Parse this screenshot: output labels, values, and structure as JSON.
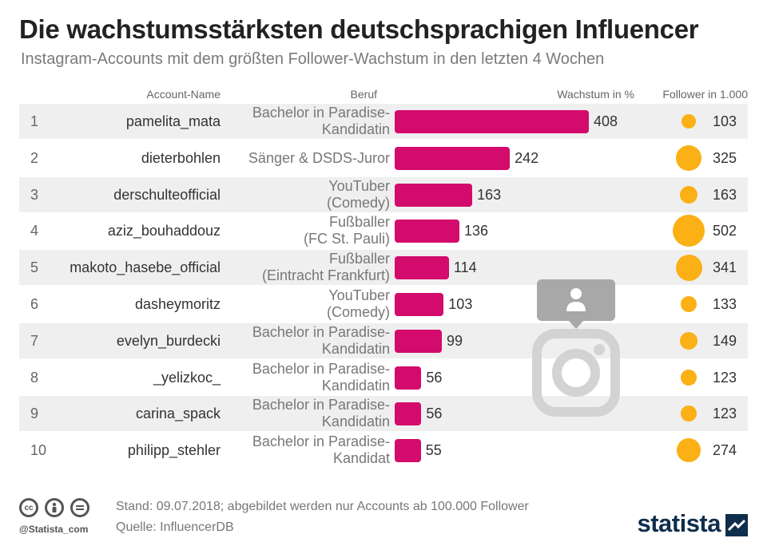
{
  "title": "Die wachstumsstärksten deutschsprachigen Influencer",
  "subtitle": "Instagram-Accounts mit dem größten Follower-Wachstum in den letzten 4 Wochen",
  "headers": {
    "account": "Account-Name",
    "beruf": "Beruf",
    "growth": "Wachstum in %",
    "followers": "Follower in 1.000"
  },
  "colors": {
    "bar": "#d30b6c",
    "bubble": "#fbb015",
    "row_shade": "#efefef",
    "brand": "#0f2e4c"
  },
  "chart_data": {
    "type": "bar",
    "orientation": "horizontal",
    "categories": [
      "pamelita_mata",
      "dieterbohlen",
      "derschulteofficial",
      "aziz_bouhaddouz",
      "makoto_hasebe_official",
      "dasheymoritz",
      "evelyn_burdecki",
      "_yelizkoc_",
      "carina_spack",
      "philipp_stehler"
    ],
    "series": [
      {
        "name": "Wachstum in %",
        "values": [
          408,
          242,
          163,
          136,
          114,
          103,
          99,
          56,
          56,
          55
        ]
      },
      {
        "name": "Follower in 1.000",
        "values": [
          103,
          325,
          163,
          502,
          341,
          133,
          149,
          123,
          123,
          274
        ]
      }
    ]
  },
  "rows": [
    {
      "rank": "1",
      "account": "pamelita_mata",
      "beruf": [
        "Bachelor in Paradise-",
        "Kandidatin"
      ],
      "growth": "408",
      "followers": "103"
    },
    {
      "rank": "2",
      "account": "dieterbohlen",
      "beruf": [
        "Sänger & DSDS-Juror"
      ],
      "growth": "242",
      "followers": "325"
    },
    {
      "rank": "3",
      "account": "derschulteofficial",
      "beruf": [
        "YouTuber",
        "(Comedy)"
      ],
      "growth": "163",
      "followers": "163"
    },
    {
      "rank": "4",
      "account": "aziz_bouhaddouz",
      "beruf": [
        "Fußballer",
        "(FC St. Pauli)"
      ],
      "growth": "136",
      "followers": "502"
    },
    {
      "rank": "5",
      "account": "makoto_hasebe_official",
      "beruf": [
        "Fußballer",
        "(Eintracht Frankfurt)"
      ],
      "growth": "114",
      "followers": "341"
    },
    {
      "rank": "6",
      "account": "dasheymoritz",
      "beruf": [
        "YouTuber",
        "(Comedy)"
      ],
      "growth": "103",
      "followers": "133"
    },
    {
      "rank": "7",
      "account": "evelyn_burdecki",
      "beruf": [
        "Bachelor in Paradise-",
        "Kandidatin"
      ],
      "growth": "99",
      "followers": "149"
    },
    {
      "rank": "8",
      "account": "_yelizkoc_",
      "beruf": [
        "Bachelor in Paradise-",
        "Kandidatin"
      ],
      "growth": "56",
      "followers": "123"
    },
    {
      "rank": "9",
      "account": "carina_spack",
      "beruf": [
        "Bachelor in Paradise-",
        "Kandidatin"
      ],
      "growth": "56",
      "followers": "123"
    },
    {
      "rank": "10",
      "account": "philipp_stehler",
      "beruf": [
        "Bachelor in Paradise-",
        "Kandidat"
      ],
      "growth": "55",
      "followers": "274"
    }
  ],
  "footer": {
    "stand": "Stand: 09.07.2018; abgebildet werden nur Accounts ab 100.000 Follower",
    "source": "Quelle: InfluencerDB",
    "handle": "@Statista_com",
    "brand": "statista"
  },
  "icons": [
    "cc-icon",
    "by-icon",
    "nd-icon",
    "instagram-icon",
    "statista-logo-icon"
  ]
}
